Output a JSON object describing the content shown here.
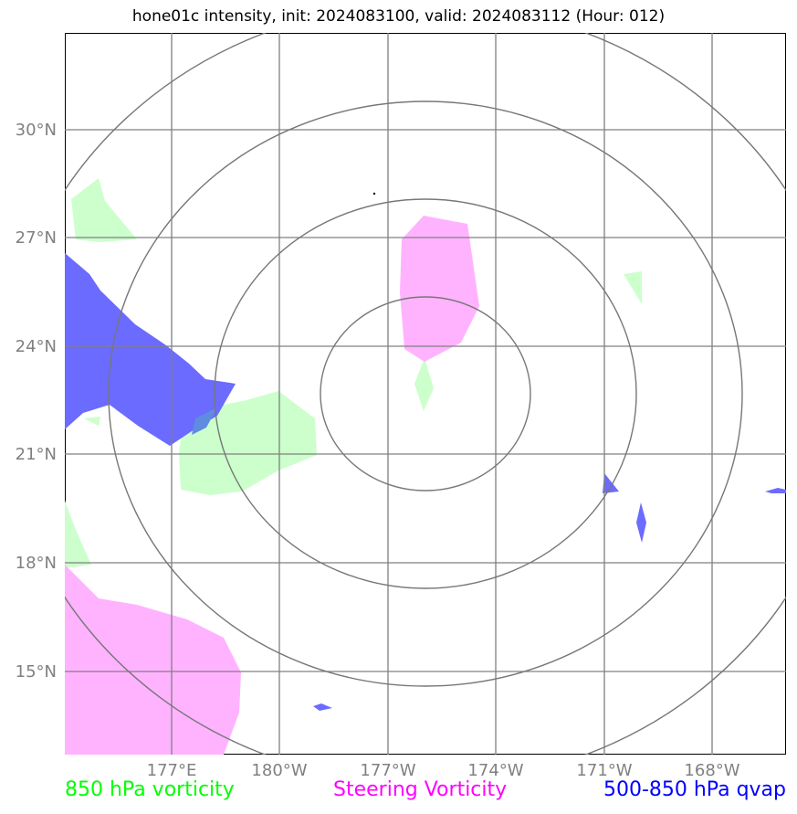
{
  "title": "hone01c intensity, init: 2024083100, valid: 2024083112 (Hour: 012)",
  "colors": {
    "vorticity_850": "#ccffcc",
    "steering_vorticity": "#ffb3ff",
    "qvap": "#6b6bff",
    "grid": "#808080",
    "rings": "#777777"
  },
  "axes": {
    "lat_labels": [
      "30°N",
      "27°N",
      "24°N",
      "21°N",
      "18°N",
      "15°N"
    ],
    "lon_labels": [
      "177°E",
      "180°W",
      "177°W",
      "174°W",
      "171°W",
      "168°W"
    ]
  },
  "legend": {
    "vorticity_850": "850 hPa vorticity",
    "steering": "Steering Vorticity",
    "qvap": "500-850 hPa qvap"
  }
}
